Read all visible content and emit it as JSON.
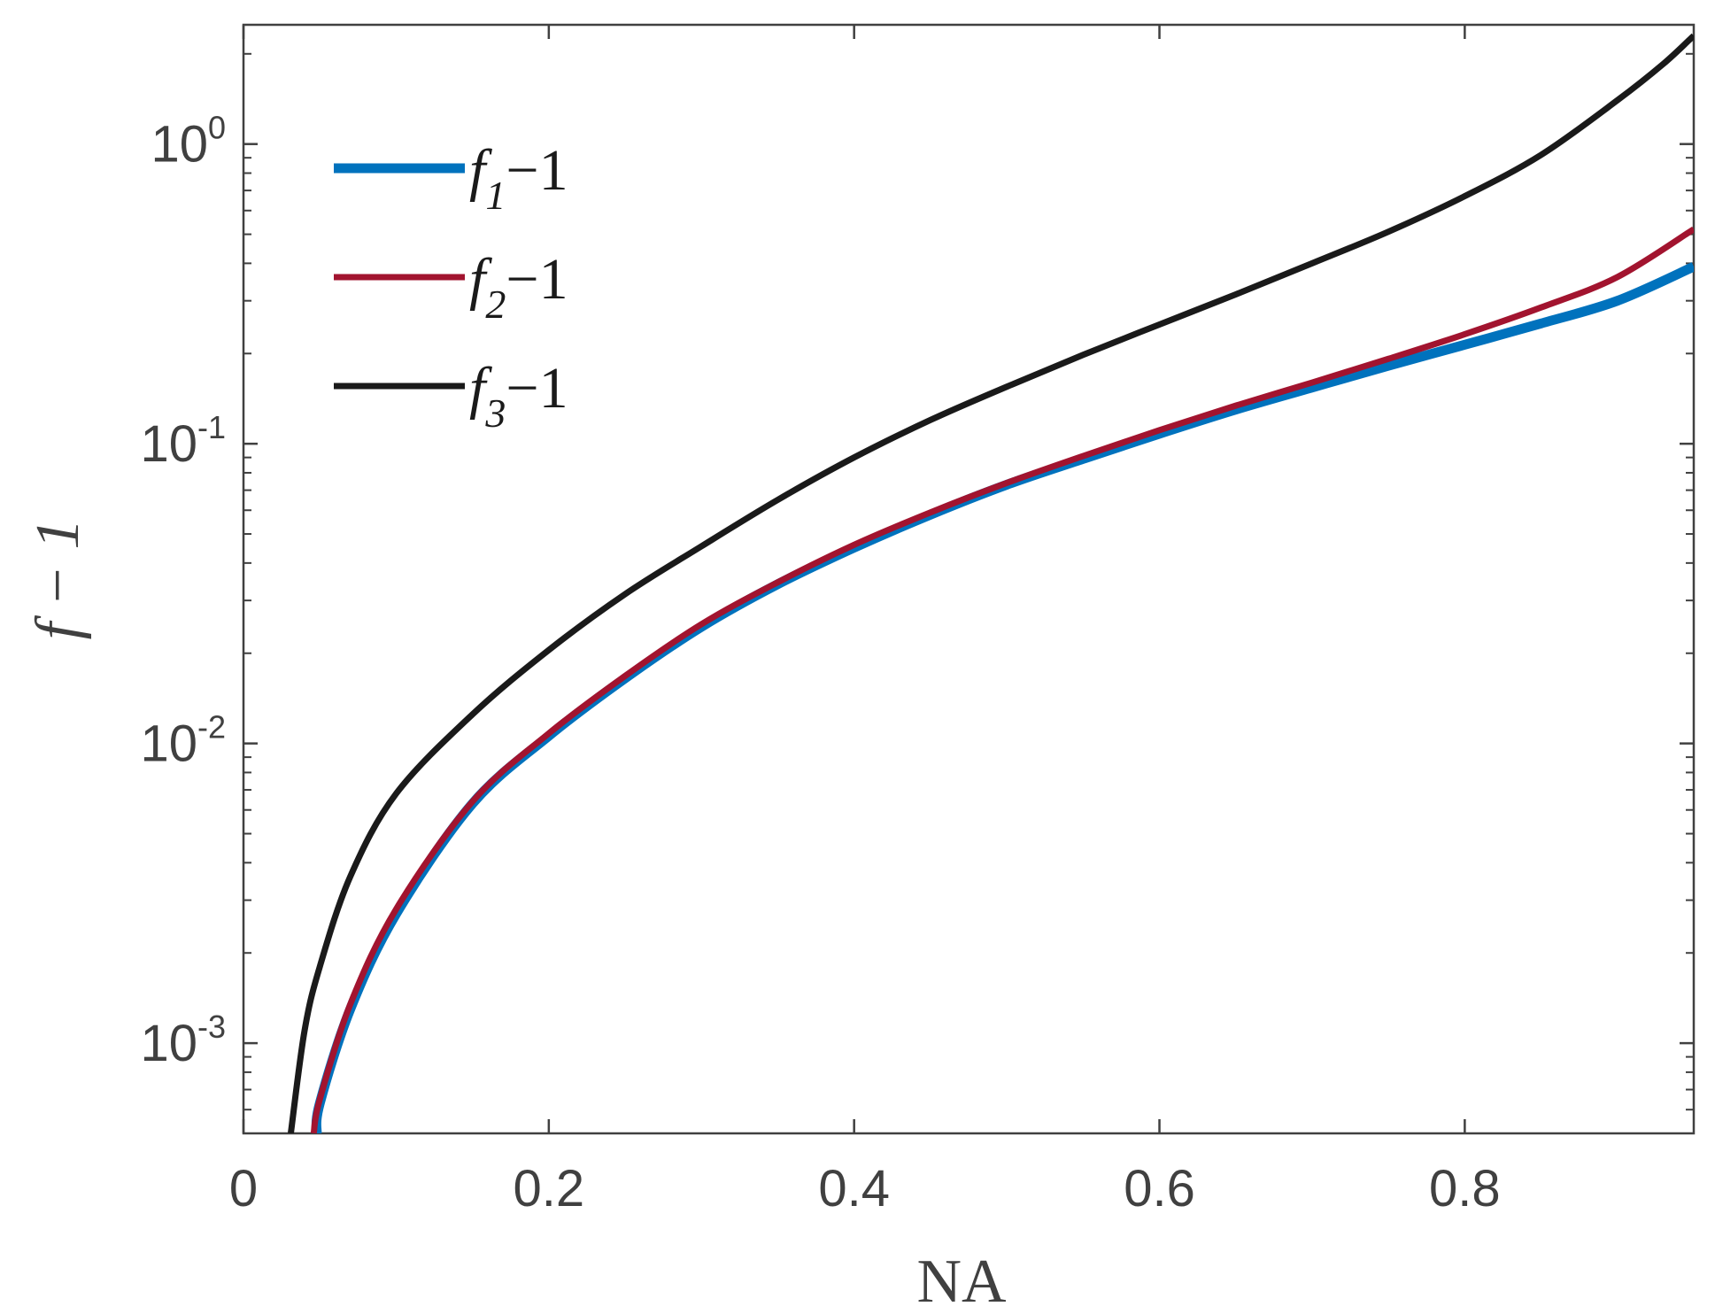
{
  "chart_data": {
    "type": "line",
    "xlabel": "NA",
    "ylabel": "f − 1",
    "xlim": [
      0,
      0.95
    ],
    "ylim": [
      0.0005,
      2.5
    ],
    "yscale": "log",
    "grid": false,
    "legend_position": "top-left",
    "x_ticks": [
      "0",
      "0.2",
      "0.4",
      "0.6",
      "0.8"
    ],
    "y_ticks": [
      {
        "base": "10",
        "exp": "-3",
        "value": 0.001
      },
      {
        "base": "10",
        "exp": "-2",
        "value": 0.01
      },
      {
        "base": "10",
        "exp": "-1",
        "value": 0.1
      },
      {
        "base": "10",
        "exp": "0",
        "value": 1
      }
    ],
    "series": [
      {
        "name": "f1−1",
        "legend_main": "f",
        "legend_sub": "1",
        "legend_tail": "−1",
        "color": "#0072BD",
        "x": [
          0.048,
          0.05,
          0.07,
          0.1,
          0.15,
          0.2,
          0.25,
          0.3,
          0.35,
          0.4,
          0.45,
          0.5,
          0.55,
          0.6,
          0.65,
          0.7,
          0.75,
          0.8,
          0.85,
          0.9,
          0.95
        ],
        "y": [
          0.0005,
          0.00063,
          0.0013,
          0.0027,
          0.0063,
          0.0106,
          0.0165,
          0.0245,
          0.034,
          0.045,
          0.058,
          0.073,
          0.089,
          0.108,
          0.13,
          0.154,
          0.182,
          0.214,
          0.252,
          0.3,
          0.39
        ]
      },
      {
        "name": "f2−1",
        "legend_main": "f",
        "legend_sub": "2",
        "legend_tail": "−1",
        "color": "#A2142F",
        "x": [
          0.046,
          0.05,
          0.07,
          0.1,
          0.15,
          0.2,
          0.25,
          0.3,
          0.35,
          0.4,
          0.45,
          0.5,
          0.55,
          0.6,
          0.65,
          0.7,
          0.75,
          0.8,
          0.85,
          0.9,
          0.95
        ],
        "y": [
          0.0005,
          0.00065,
          0.00135,
          0.0028,
          0.0064,
          0.0108,
          0.0168,
          0.025,
          0.0345,
          0.046,
          0.059,
          0.074,
          0.091,
          0.111,
          0.134,
          0.16,
          0.192,
          0.232,
          0.285,
          0.36,
          0.52
        ]
      },
      {
        "name": "f3−1",
        "legend_main": "f",
        "legend_sub": "3",
        "legend_tail": "−1",
        "color": "#1a1a1a",
        "x": [
          0.031,
          0.04,
          0.05,
          0.07,
          0.1,
          0.15,
          0.2,
          0.25,
          0.3,
          0.35,
          0.4,
          0.45,
          0.5,
          0.55,
          0.6,
          0.65,
          0.7,
          0.75,
          0.8,
          0.85,
          0.9,
          0.93,
          0.95
        ],
        "y": [
          0.0005,
          0.0011,
          0.0018,
          0.0036,
          0.0068,
          0.0125,
          0.0205,
          0.0315,
          0.0455,
          0.065,
          0.09,
          0.12,
          0.155,
          0.198,
          0.25,
          0.315,
          0.4,
          0.51,
          0.67,
          0.92,
          1.4,
          1.85,
          2.3
        ]
      }
    ]
  }
}
